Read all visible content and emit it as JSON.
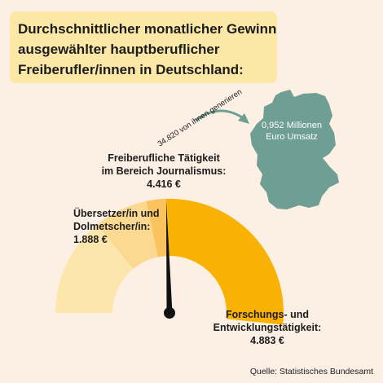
{
  "title_lines": [
    "Durchschnittlicher monatlicher Gewinn",
    "ausgewählter hauptberuflicher",
    "Freiberufler/innen in Deutschland:"
  ],
  "annotation": {
    "arrow_text": "34.820 von ihnen generieren",
    "map_line1": "0,952 Millionen",
    "map_line2": "Euro Umsatz"
  },
  "source": "Quelle: Statistisches Bundesamt",
  "colors": {
    "background": "#fcf0e4",
    "title_box": "#fbe8a6",
    "track": "#fde6ac",
    "uebersetzer": "#fbd991",
    "journalismus": "#fac35e",
    "forschung": "#f9b103",
    "map": "#6f9e94",
    "needle": "#111111"
  },
  "chart_data": {
    "type": "gauge",
    "title": "Durchschnittlicher monatlicher Gewinn ausgewählter hauptberuflicher Freiberufler/innen in Deutschland:",
    "unit": "€",
    "categories": [
      "Übersetzer/in und Dolmetscher/in:",
      "Freiberufliche Tätigkeit im Bereich Journalismus:",
      "Forschungs- und Entwicklungstätigkeit:"
    ],
    "values": [
      1888,
      4416,
      4883
    ],
    "value_labels": [
      "1.888 €",
      "4.416 €",
      "4.883 €"
    ],
    "label_lines": [
      [
        "Übersetzer/in und",
        "Dolmetscher/in:"
      ],
      [
        "Freiberufliche Tätigkeit",
        "im Bereich Journalismus:"
      ],
      [
        "Forschungs- und",
        "Entwicklungstätigkeit:"
      ]
    ],
    "needle_value": 4416,
    "scale_max": 9000
  }
}
